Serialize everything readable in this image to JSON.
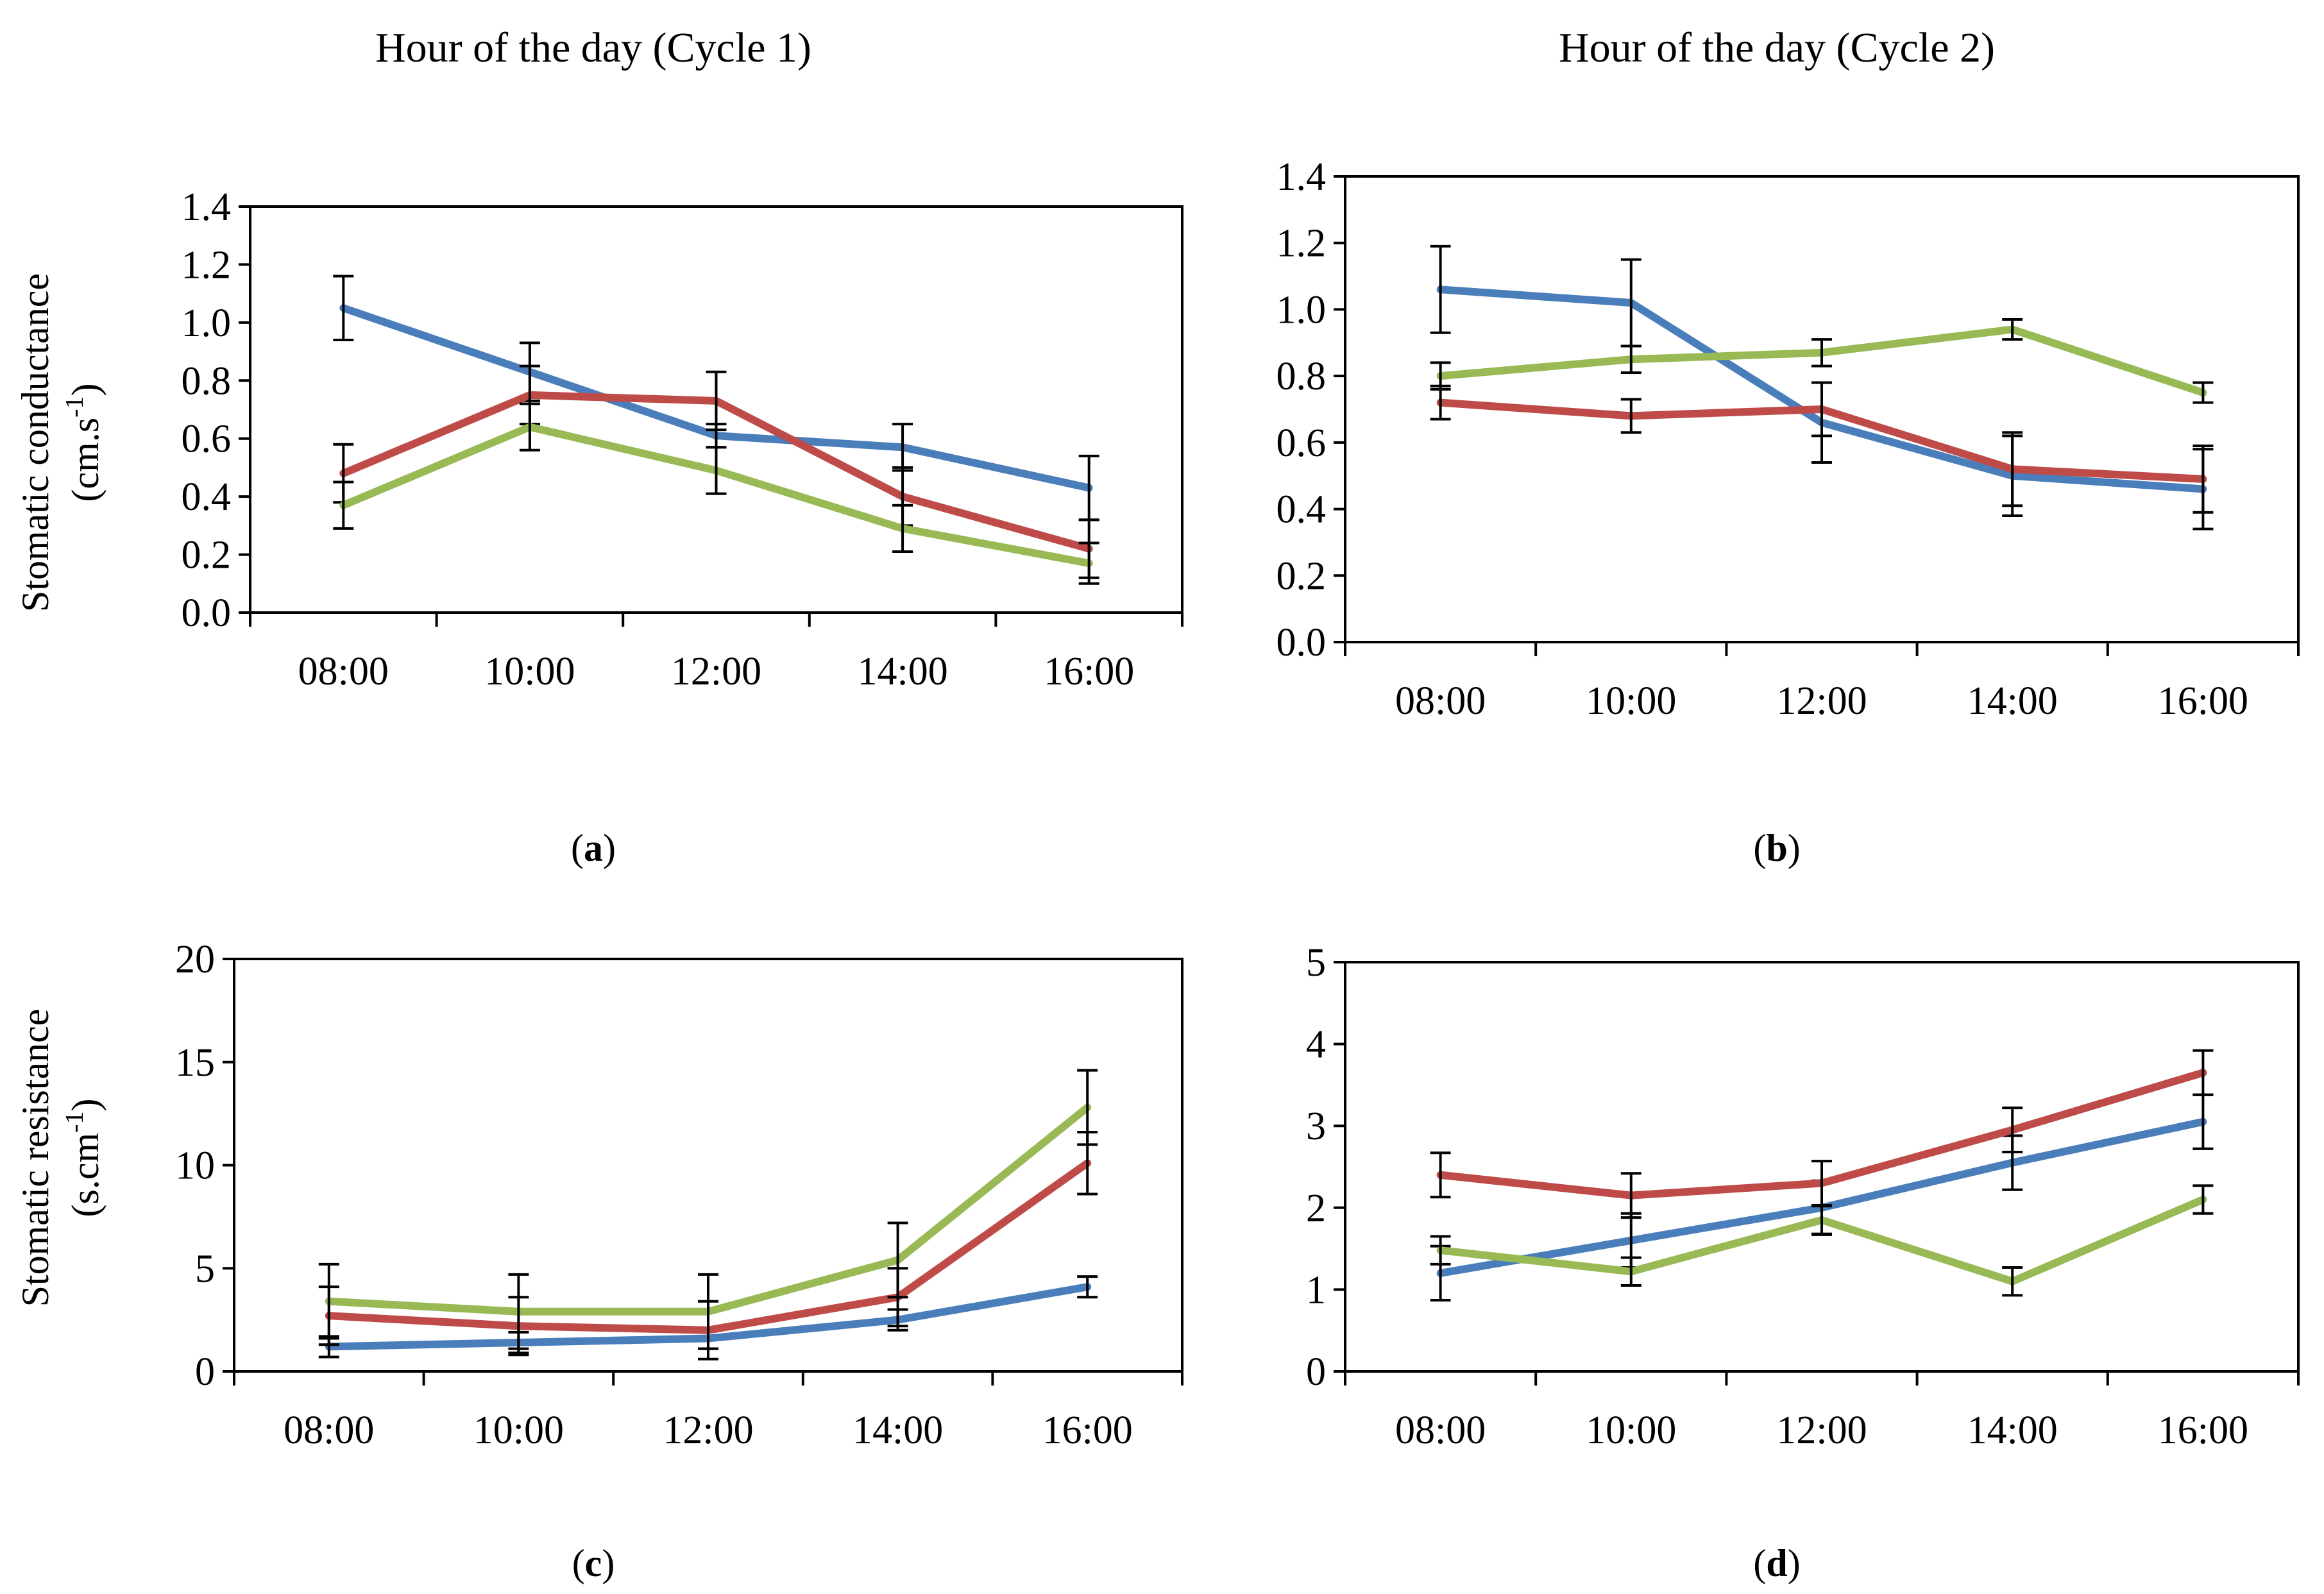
{
  "column_titles": [
    "Hour of the day (Cycle 1)",
    "Hour of the day (Cycle 2)"
  ],
  "series_colors": [
    "#4a7ebb",
    "#be4b48",
    "#98b954"
  ],
  "chart_data": [
    {
      "id": "a",
      "type": "line",
      "panel_label": "a",
      "ylabel_line1": "Stomatic conductance",
      "ylabel_line2": "(cm.s",
      "ylabel_sup": "-1",
      "ylabel_end": ")",
      "categories": [
        "08:00",
        "10:00",
        "12:00",
        "14:00",
        "16:00"
      ],
      "ylim": [
        0,
        1.4
      ],
      "yticks": [
        "0.0",
        "0.2",
        "0.4",
        "0.6",
        "0.8",
        "1.0",
        "1.2",
        "1.4"
      ],
      "series": [
        {
          "color": "#4a7ebb",
          "values": [
            1.05,
            0.83,
            0.61,
            0.57,
            0.43
          ],
          "errors": [
            0.11,
            0.1,
            0.04,
            0.08,
            0.11
          ]
        },
        {
          "color": "#be4b48",
          "values": [
            0.48,
            0.75,
            0.73,
            0.4,
            0.22
          ],
          "errors": [
            0.1,
            0.1,
            0.1,
            0.1,
            0.1
          ]
        },
        {
          "color": "#98b954",
          "values": [
            0.37,
            0.64,
            0.49,
            0.29,
            0.17
          ],
          "errors": [
            0.08,
            0.08,
            0.08,
            0.08,
            0.07
          ]
        }
      ]
    },
    {
      "id": "b",
      "type": "line",
      "panel_label": "b",
      "categories": [
        "08:00",
        "10:00",
        "12:00",
        "14:00",
        "16:00"
      ],
      "ylim": [
        0,
        1.4
      ],
      "yticks": [
        "0.0",
        "0.2",
        "0.4",
        "0.6",
        "0.8",
        "1.0",
        "1.2",
        "1.4"
      ],
      "series": [
        {
          "color": "#4a7ebb",
          "values": [
            1.06,
            1.02,
            0.66,
            0.5,
            0.46
          ],
          "errors": [
            0.13,
            0.13,
            0.12,
            0.12,
            0.12
          ]
        },
        {
          "color": "#be4b48",
          "values": [
            0.72,
            0.68,
            0.7,
            0.52,
            0.49
          ],
          "errors": [
            0.05,
            0.05,
            0.08,
            0.11,
            0.1
          ]
        },
        {
          "color": "#98b954",
          "values": [
            0.8,
            0.85,
            0.87,
            0.94,
            0.75
          ],
          "errors": [
            0.04,
            0.04,
            0.04,
            0.03,
            0.03
          ]
        }
      ]
    },
    {
      "id": "c",
      "type": "line",
      "panel_label": "c",
      "ylabel_line1": "Stomatic resistance",
      "ylabel_line2": "(s.cm",
      "ylabel_sup": "-1",
      "ylabel_end": ")",
      "categories": [
        "08:00",
        "10:00",
        "12:00",
        "14:00",
        "16:00"
      ],
      "ylim": [
        0,
        20
      ],
      "yticks": [
        "0",
        "5",
        "10",
        "15",
        "20"
      ],
      "series": [
        {
          "color": "#4a7ebb",
          "values": [
            1.2,
            1.4,
            1.6,
            2.5,
            4.1
          ],
          "errors": [
            0.5,
            0.5,
            0.5,
            0.5,
            0.5
          ]
        },
        {
          "color": "#be4b48",
          "values": [
            2.7,
            2.2,
            2.0,
            3.6,
            10.1
          ],
          "errors": [
            1.4,
            1.4,
            1.4,
            1.4,
            1.5
          ]
        },
        {
          "color": "#98b954",
          "values": [
            3.4,
            2.9,
            2.9,
            5.4,
            12.8
          ],
          "errors": [
            1.8,
            1.8,
            1.8,
            1.8,
            1.8
          ]
        }
      ]
    },
    {
      "id": "d",
      "type": "line",
      "panel_label": "d",
      "categories": [
        "08:00",
        "10:00",
        "12:00",
        "14:00",
        "16:00"
      ],
      "ylim": [
        0,
        5
      ],
      "yticks": [
        "0",
        "1",
        "2",
        "3",
        "4",
        "5"
      ],
      "series": [
        {
          "color": "#4a7ebb",
          "values": [
            1.2,
            1.6,
            2.0,
            2.55,
            3.05
          ],
          "errors": [
            0.33,
            0.33,
            0.33,
            0.33,
            0.33
          ]
        },
        {
          "color": "#be4b48",
          "values": [
            2.4,
            2.15,
            2.3,
            2.95,
            3.65
          ],
          "errors": [
            0.27,
            0.27,
            0.27,
            0.27,
            0.27
          ]
        },
        {
          "color": "#98b954",
          "values": [
            1.48,
            1.22,
            1.85,
            1.1,
            2.1
          ],
          "errors": [
            0.17,
            0.17,
            0.17,
            0.17,
            0.17
          ]
        }
      ]
    }
  ]
}
